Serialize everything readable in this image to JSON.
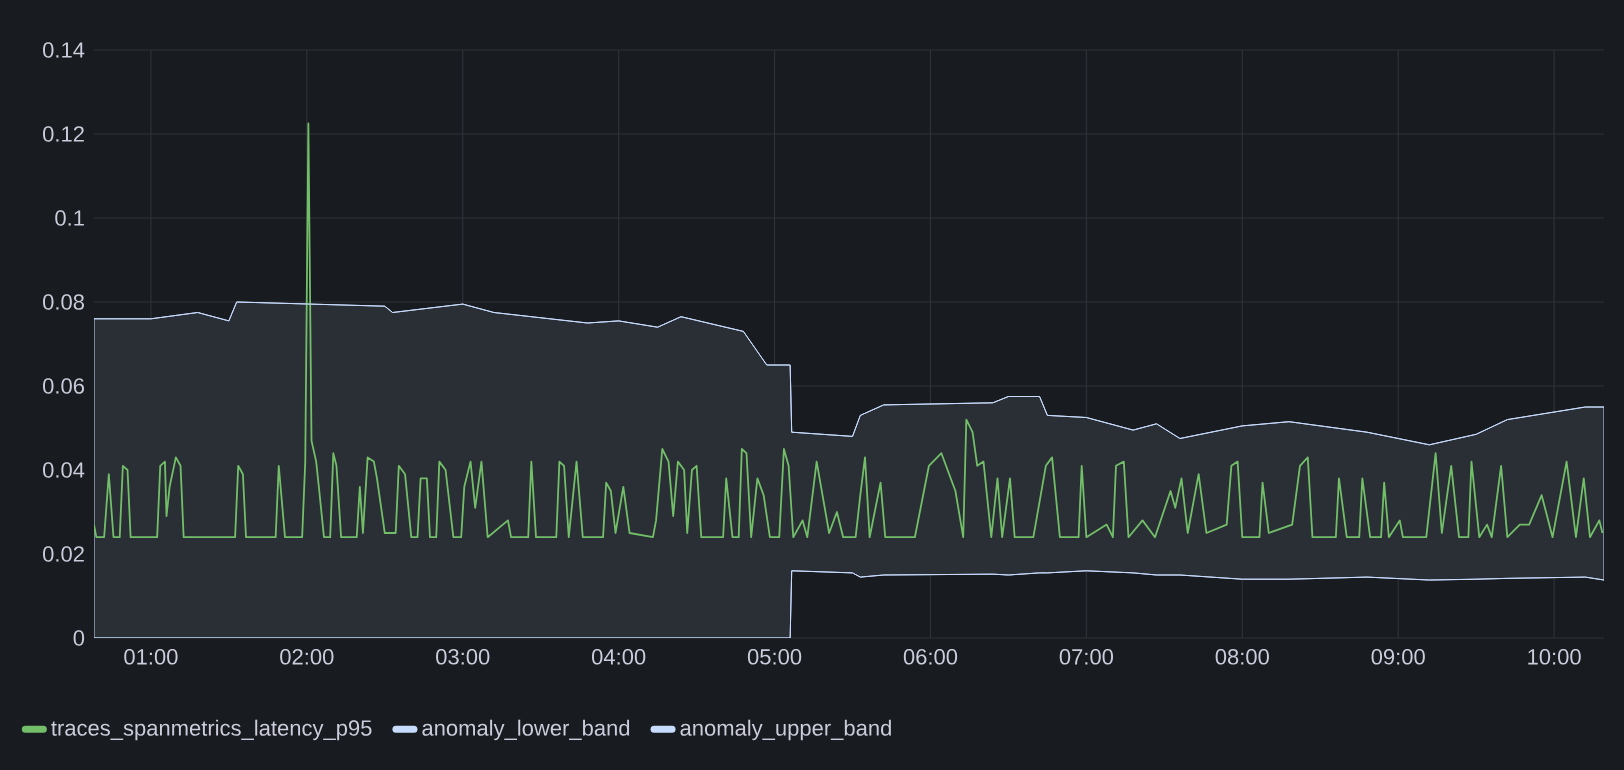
{
  "chart_data": {
    "type": "line",
    "xlim": [
      0.635,
      10.32
    ],
    "ylim": [
      0,
      0.14
    ],
    "xticks": [
      {
        "value": 1,
        "label": "01:00"
      },
      {
        "value": 2,
        "label": "02:00"
      },
      {
        "value": 3,
        "label": "03:00"
      },
      {
        "value": 4,
        "label": "04:00"
      },
      {
        "value": 5,
        "label": "05:00"
      },
      {
        "value": 6,
        "label": "06:00"
      },
      {
        "value": 7,
        "label": "07:00"
      },
      {
        "value": 8,
        "label": "08:00"
      },
      {
        "value": 9,
        "label": "09:00"
      },
      {
        "value": 10,
        "label": "10:00"
      }
    ],
    "yticks": [
      0,
      0.02,
      0.04,
      0.06,
      0.08,
      0.1,
      0.12,
      0.14
    ],
    "grid": true,
    "legend": "bottom left",
    "series": [
      {
        "name": "traces_spanmetrics_latency_p95",
        "type": "line",
        "color": "#73bf69",
        "x": [
          0.635,
          0.65,
          0.7,
          0.73,
          0.76,
          0.8,
          0.82,
          0.85,
          0.87,
          1.04,
          1.06,
          1.09,
          1.1,
          1.12,
          1.16,
          1.19,
          1.21,
          1.54,
          1.56,
          1.59,
          1.61,
          1.8,
          1.82,
          1.86,
          1.97,
          1.99,
          2.01,
          2.03,
          2.06,
          2.08,
          2.11,
          2.15,
          2.17,
          2.19,
          2.22,
          2.32,
          2.34,
          2.36,
          2.39,
          2.43,
          2.45,
          2.5,
          2.57,
          2.59,
          2.63,
          2.67,
          2.71,
          2.73,
          2.77,
          2.79,
          2.83,
          2.85,
          2.89,
          2.94,
          2.99,
          3.01,
          3.05,
          3.08,
          3.12,
          3.16,
          3.29,
          3.31,
          3.42,
          3.44,
          3.47,
          3.6,
          3.62,
          3.65,
          3.68,
          3.73,
          3.77,
          3.9,
          3.92,
          3.95,
          3.98,
          4.03,
          4.07,
          4.22,
          4.24,
          4.28,
          4.32,
          4.35,
          4.38,
          4.42,
          4.44,
          4.47,
          4.5,
          4.53,
          4.67,
          4.69,
          4.73,
          4.77,
          4.79,
          4.82,
          4.85,
          4.89,
          4.93,
          4.97,
          5.03,
          5.06,
          5.09,
          5.12,
          5.18,
          5.21,
          5.27,
          5.35,
          5.4,
          5.44,
          5.52,
          5.55,
          5.58,
          5.61,
          5.68,
          5.71,
          5.9,
          5.99,
          6.07,
          6.16,
          6.21,
          6.23,
          6.27,
          6.3,
          6.34,
          6.39,
          6.43,
          6.46,
          6.51,
          6.54,
          6.66,
          6.74,
          6.78,
          6.83,
          6.95,
          6.97,
          7.0,
          7.13,
          7.17,
          7.19,
          7.24,
          7.27,
          7.36,
          7.44,
          7.54,
          7.57,
          7.61,
          7.65,
          7.72,
          7.77,
          7.9,
          7.93,
          7.97,
          8.0,
          8.11,
          8.13,
          8.17,
          8.32,
          8.37,
          8.42,
          8.45,
          8.6,
          8.62,
          8.67,
          8.75,
          8.77,
          8.82,
          8.89,
          8.91,
          8.94,
          9.01,
          9.03,
          9.18,
          9.24,
          9.28,
          9.34,
          9.39,
          9.45,
          9.47,
          9.52,
          9.57,
          9.6,
          9.66,
          9.7,
          9.78,
          9.84,
          9.92,
          9.99,
          10.08,
          10.14,
          10.19,
          10.23,
          10.29,
          10.31
        ],
        "values": [
          0.027,
          0.024,
          0.024,
          0.039,
          0.024,
          0.024,
          0.041,
          0.04,
          0.024,
          0.024,
          0.041,
          0.042,
          0.029,
          0.036,
          0.043,
          0.041,
          0.024,
          0.024,
          0.041,
          0.039,
          0.024,
          0.024,
          0.041,
          0.024,
          0.024,
          0.042,
          0.1225,
          0.047,
          0.042,
          0.035,
          0.024,
          0.024,
          0.044,
          0.041,
          0.024,
          0.024,
          0.036,
          0.025,
          0.043,
          0.042,
          0.038,
          0.025,
          0.025,
          0.041,
          0.039,
          0.024,
          0.024,
          0.038,
          0.038,
          0.024,
          0.024,
          0.042,
          0.04,
          0.024,
          0.024,
          0.036,
          0.042,
          0.031,
          0.042,
          0.024,
          0.028,
          0.024,
          0.024,
          0.042,
          0.024,
          0.024,
          0.042,
          0.041,
          0.024,
          0.042,
          0.024,
          0.024,
          0.037,
          0.035,
          0.025,
          0.036,
          0.025,
          0.024,
          0.028,
          0.045,
          0.042,
          0.029,
          0.042,
          0.04,
          0.025,
          0.04,
          0.041,
          0.024,
          0.024,
          0.038,
          0.024,
          0.024,
          0.045,
          0.044,
          0.024,
          0.038,
          0.034,
          0.024,
          0.024,
          0.045,
          0.041,
          0.024,
          0.028,
          0.024,
          0.042,
          0.025,
          0.03,
          0.024,
          0.024,
          0.034,
          0.043,
          0.024,
          0.037,
          0.024,
          0.024,
          0.041,
          0.044,
          0.035,
          0.024,
          0.052,
          0.049,
          0.041,
          0.042,
          0.024,
          0.038,
          0.024,
          0.038,
          0.024,
          0.024,
          0.041,
          0.043,
          0.024,
          0.024,
          0.041,
          0.024,
          0.027,
          0.024,
          0.041,
          0.042,
          0.024,
          0.028,
          0.024,
          0.035,
          0.031,
          0.038,
          0.025,
          0.039,
          0.025,
          0.027,
          0.041,
          0.042,
          0.024,
          0.024,
          0.037,
          0.025,
          0.027,
          0.041,
          0.043,
          0.024,
          0.024,
          0.038,
          0.024,
          0.024,
          0.038,
          0.024,
          0.024,
          0.037,
          0.024,
          0.028,
          0.024,
          0.024,
          0.044,
          0.025,
          0.041,
          0.024,
          0.024,
          0.042,
          0.024,
          0.027,
          0.024,
          0.041,
          0.024,
          0.027,
          0.027,
          0.034,
          0.024,
          0.042,
          0.024,
          0.038,
          0.024,
          0.028,
          0.025
        ]
      },
      {
        "name": "anomaly_lower_band",
        "type": "line",
        "color": "#c8dcff",
        "x": [
          0.635,
          1.0,
          1.3,
          1.5,
          1.55,
          2.5,
          2.55,
          3.0,
          3.2,
          3.8,
          4.0,
          4.25,
          4.4,
          4.8,
          4.95,
          5.1,
          5.11,
          5.5,
          5.55,
          5.7,
          6.4,
          6.5,
          6.7,
          6.75,
          7.0,
          7.3,
          7.45,
          7.6,
          8.0,
          8.3,
          8.8,
          9.2,
          9.5,
          9.7,
          10.2,
          10.32
        ],
        "values": [
          0,
          0,
          0,
          0,
          0,
          0,
          0,
          0,
          0,
          0,
          0,
          0,
          0,
          0,
          0,
          0,
          0.016,
          0.0155,
          0.0145,
          0.015,
          0.0152,
          0.015,
          0.0155,
          0.0155,
          0.016,
          0.0155,
          0.015,
          0.015,
          0.014,
          0.014,
          0.0145,
          0.0138,
          0.014,
          0.0142,
          0.0145,
          0.0138
        ]
      },
      {
        "name": "anomaly_upper_band",
        "type": "line",
        "color": "#c8dcff",
        "x": [
          0.635,
          1.0,
          1.3,
          1.5,
          1.55,
          2.5,
          2.55,
          3.0,
          3.2,
          3.8,
          4.0,
          4.25,
          4.4,
          4.8,
          4.95,
          5.1,
          5.11,
          5.5,
          5.55,
          5.7,
          6.4,
          6.5,
          6.7,
          6.75,
          7.0,
          7.3,
          7.45,
          7.6,
          8.0,
          8.3,
          8.8,
          9.2,
          9.5,
          9.7,
          10.2,
          10.32
        ],
        "values": [
          0.076,
          0.076,
          0.0775,
          0.0755,
          0.08,
          0.079,
          0.0775,
          0.0795,
          0.0775,
          0.075,
          0.0755,
          0.074,
          0.0765,
          0.073,
          0.065,
          0.065,
          0.049,
          0.048,
          0.053,
          0.0555,
          0.056,
          0.0575,
          0.0575,
          0.053,
          0.0525,
          0.0495,
          0.051,
          0.0475,
          0.0505,
          0.0515,
          0.049,
          0.046,
          0.0485,
          0.052,
          0.055,
          0.055
        ],
        "upper": [
          0.076,
          0.076,
          0.0775,
          0.0755,
          0.08,
          0.079,
          0.0775,
          0.0795,
          0.0775,
          0.075,
          0.0755,
          0.074,
          0.0765,
          0.073,
          0.065,
          0.065,
          0.049,
          0.048,
          0.053,
          0.0555,
          0.056,
          0.0575,
          0.0575,
          0.053,
          0.0525,
          0.0495,
          0.051,
          0.0475,
          0.0505,
          0.0515,
          0.049,
          0.046,
          0.0485,
          0.052,
          0.055,
          0.055
        ],
        "lower": [
          0,
          0,
          0,
          0,
          0,
          0,
          0,
          0,
          0,
          0,
          0,
          0,
          0,
          0,
          0,
          0,
          0.016,
          0.0155,
          0.0145,
          0.015,
          0.0152,
          0.015,
          0.0155,
          0.0155,
          0.016,
          0.0155,
          0.015,
          0.015,
          0.014,
          0.014,
          0.0145,
          0.0138,
          0.014,
          0.0142,
          0.0145,
          0.0138
        ]
      }
    ]
  }
}
